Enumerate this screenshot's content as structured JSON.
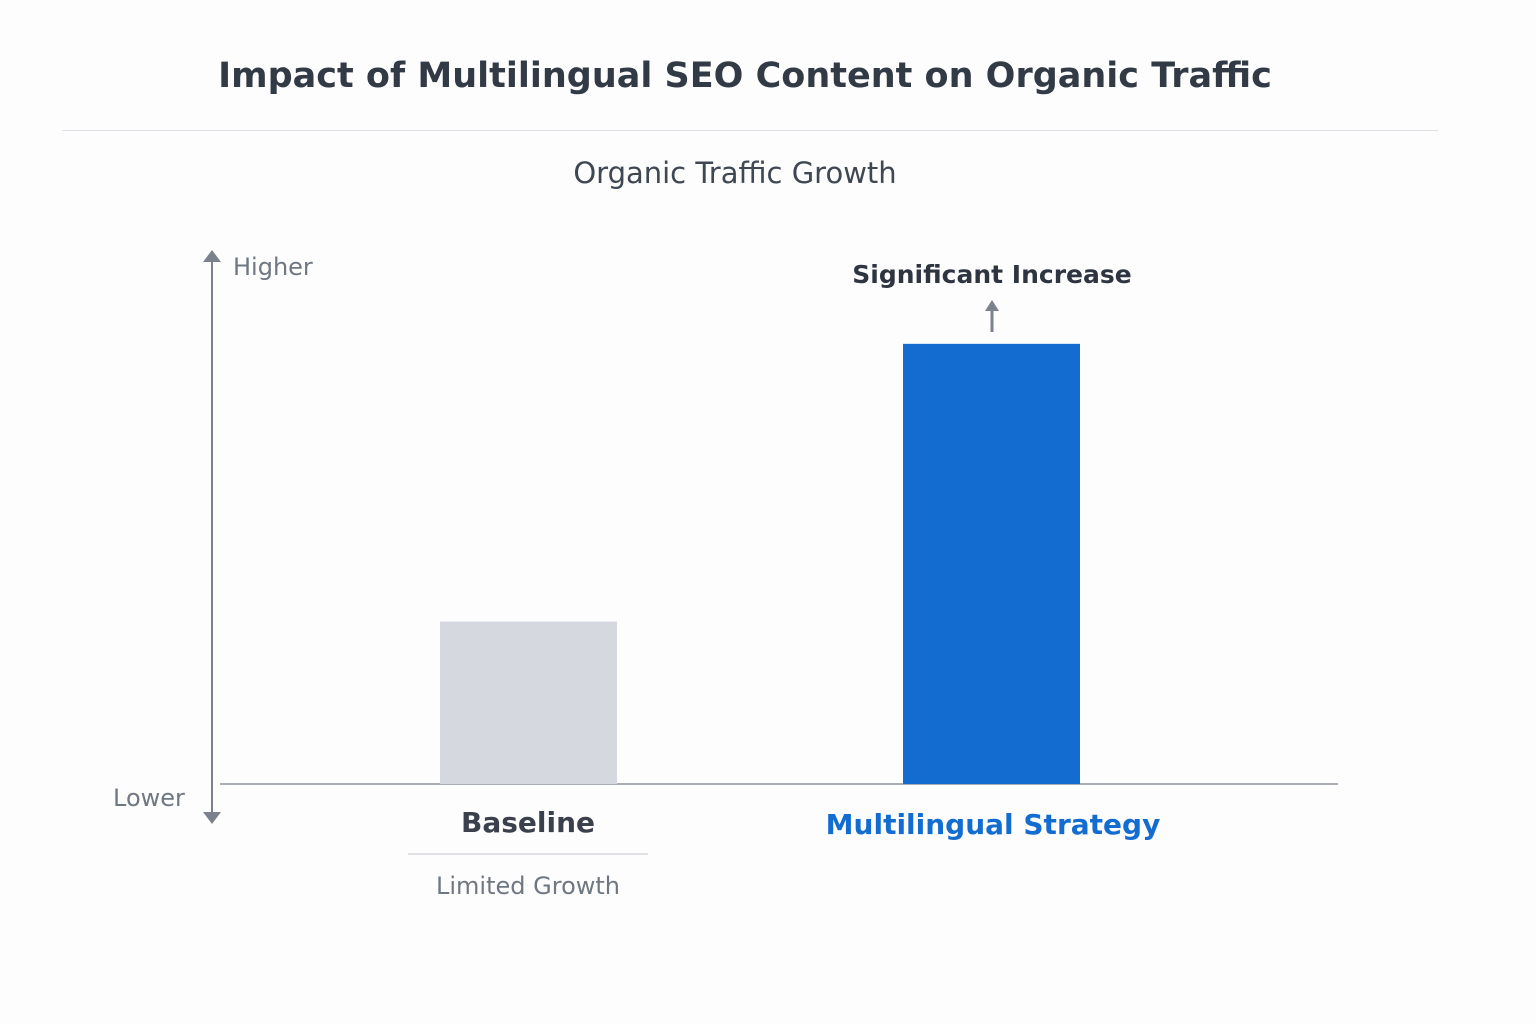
{
  "title": "Impact of Multilingual SEO Content on Organic Traffic",
  "chart_data": {
    "type": "bar",
    "title": "Organic Traffic Growth",
    "ylabel_top": "Higher",
    "ylabel_bottom": "Lower",
    "ylim": [
      0,
      100
    ],
    "grid": false,
    "categories": [
      "Baseline",
      "Multilingual Strategy"
    ],
    "values": [
      31,
      84
    ],
    "colors": [
      "#d5d8de",
      "#136dd0"
    ],
    "label_colors": [
      "#3a414c",
      "#136dd0"
    ],
    "annotations": {
      "baseline_note": "Limited Growth",
      "multilingual_note": "Significant Increase"
    }
  }
}
